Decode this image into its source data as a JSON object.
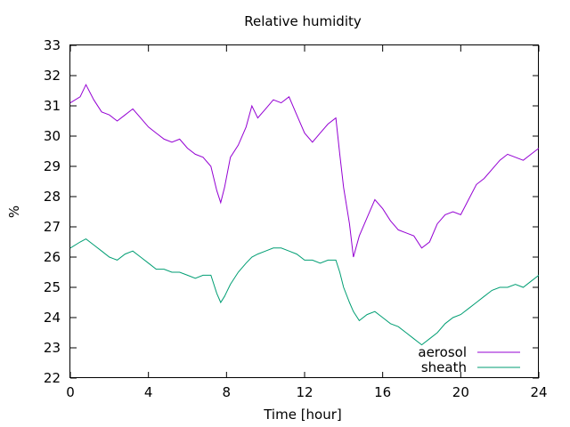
{
  "chart_data": {
    "type": "line",
    "title": "Relative humidity",
    "xlabel": "Time [hour]",
    "ylabel": "%",
    "xlim": [
      0,
      24
    ],
    "ylim": [
      22,
      33
    ],
    "xticks": [
      0,
      4,
      8,
      12,
      16,
      20,
      24
    ],
    "yticks": [
      22,
      23,
      24,
      25,
      26,
      27,
      28,
      29,
      30,
      31,
      32,
      33
    ],
    "legend_position": "bottom-right",
    "grid": false,
    "series": [
      {
        "name": "aerosol",
        "color": "#9400d3",
        "x": [
          0,
          0.5,
          0.8,
          1.2,
          1.6,
          2.0,
          2.4,
          2.8,
          3.2,
          3.6,
          4.0,
          4.4,
          4.8,
          5.2,
          5.6,
          6.0,
          6.4,
          6.8,
          7.2,
          7.5,
          7.7,
          7.9,
          8.2,
          8.6,
          9.0,
          9.3,
          9.6,
          10.0,
          10.4,
          10.8,
          11.2,
          11.6,
          12.0,
          12.4,
          12.8,
          13.2,
          13.6,
          13.8,
          14.0,
          14.3,
          14.5,
          14.8,
          15.2,
          15.6,
          16.0,
          16.4,
          16.8,
          17.2,
          17.6,
          18.0,
          18.4,
          18.8,
          19.2,
          19.6,
          20.0,
          20.4,
          20.8,
          21.2,
          21.6,
          22.0,
          22.4,
          22.8,
          23.2,
          23.6,
          24.0
        ],
        "values": [
          31.1,
          31.3,
          31.7,
          31.2,
          30.8,
          30.7,
          30.5,
          30.7,
          30.9,
          30.6,
          30.3,
          30.1,
          29.9,
          29.8,
          29.9,
          29.6,
          29.4,
          29.3,
          29.0,
          28.2,
          27.8,
          28.3,
          29.3,
          29.7,
          30.3,
          31.0,
          30.6,
          30.9,
          31.2,
          31.1,
          31.3,
          30.7,
          30.1,
          29.8,
          30.1,
          30.4,
          30.6,
          29.4,
          28.3,
          27.1,
          26.0,
          26.7,
          27.3,
          27.9,
          27.6,
          27.2,
          26.9,
          26.8,
          26.7,
          26.3,
          26.5,
          27.1,
          27.4,
          27.5,
          27.4,
          27.9,
          28.4,
          28.6,
          28.9,
          29.2,
          29.4,
          29.3,
          29.2,
          29.4,
          29.6
        ]
      },
      {
        "name": "sheath",
        "color": "#009e73",
        "x": [
          0,
          0.5,
          0.8,
          1.2,
          1.6,
          2.0,
          2.4,
          2.8,
          3.2,
          3.6,
          4.0,
          4.4,
          4.8,
          5.2,
          5.6,
          6.0,
          6.4,
          6.8,
          7.2,
          7.5,
          7.7,
          7.9,
          8.2,
          8.6,
          9.0,
          9.3,
          9.6,
          10.0,
          10.4,
          10.8,
          11.2,
          11.6,
          12.0,
          12.4,
          12.8,
          13.2,
          13.6,
          13.8,
          14.0,
          14.3,
          14.5,
          14.8,
          15.2,
          15.6,
          16.0,
          16.4,
          16.8,
          17.2,
          17.6,
          18.0,
          18.4,
          18.8,
          19.2,
          19.6,
          20.0,
          20.4,
          20.8,
          21.2,
          21.6,
          22.0,
          22.4,
          22.8,
          23.2,
          23.6,
          24.0
        ],
        "values": [
          26.3,
          26.5,
          26.6,
          26.4,
          26.2,
          26.0,
          25.9,
          26.1,
          26.2,
          26.0,
          25.8,
          25.6,
          25.6,
          25.5,
          25.5,
          25.4,
          25.3,
          25.4,
          25.4,
          24.8,
          24.5,
          24.7,
          25.1,
          25.5,
          25.8,
          26.0,
          26.1,
          26.2,
          26.3,
          26.3,
          26.2,
          26.1,
          25.9,
          25.9,
          25.8,
          25.9,
          25.9,
          25.5,
          25.0,
          24.5,
          24.2,
          23.9,
          24.1,
          24.2,
          24.0,
          23.8,
          23.7,
          23.5,
          23.3,
          23.1,
          23.3,
          23.5,
          23.8,
          24.0,
          24.1,
          24.3,
          24.5,
          24.7,
          24.9,
          25.0,
          25.0,
          25.1,
          25.0,
          25.2,
          25.4
        ]
      }
    ]
  }
}
